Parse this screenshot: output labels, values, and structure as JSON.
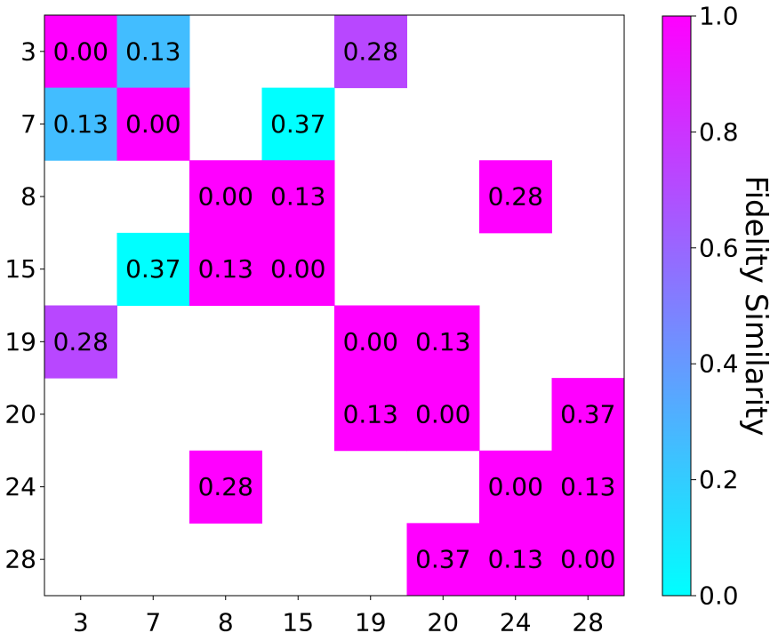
{
  "chart_data": {
    "type": "heatmap",
    "title": "",
    "xlabel": "",
    "ylabel": "",
    "x_categories": [
      "3",
      "7",
      "8",
      "15",
      "19",
      "20",
      "24",
      "28"
    ],
    "y_categories": [
      "3",
      "7",
      "8",
      "15",
      "19",
      "20",
      "24",
      "28"
    ],
    "cells": [
      {
        "row": "3",
        "col": "3",
        "label": "0.00",
        "color_value": 1.0
      },
      {
        "row": "3",
        "col": "7",
        "label": "0.13",
        "color_value": 0.26
      },
      {
        "row": "3",
        "col": "19",
        "label": "0.28",
        "color_value": 0.72
      },
      {
        "row": "7",
        "col": "3",
        "label": "0.13",
        "color_value": 0.26
      },
      {
        "row": "7",
        "col": "7",
        "label": "0.00",
        "color_value": 1.0
      },
      {
        "row": "7",
        "col": "15",
        "label": "0.37",
        "color_value": 0.0
      },
      {
        "row": "8",
        "col": "8",
        "label": "0.00",
        "color_value": 1.0
      },
      {
        "row": "8",
        "col": "15",
        "label": "0.13",
        "color_value": 1.0
      },
      {
        "row": "8",
        "col": "24",
        "label": "0.28",
        "color_value": 1.0
      },
      {
        "row": "15",
        "col": "7",
        "label": "0.37",
        "color_value": 0.0
      },
      {
        "row": "15",
        "col": "8",
        "label": "0.13",
        "color_value": 1.0
      },
      {
        "row": "15",
        "col": "15",
        "label": "0.00",
        "color_value": 1.0
      },
      {
        "row": "19",
        "col": "3",
        "label": "0.28",
        "color_value": 0.72
      },
      {
        "row": "19",
        "col": "19",
        "label": "0.00",
        "color_value": 1.0
      },
      {
        "row": "19",
        "col": "20",
        "label": "0.13",
        "color_value": 1.0
      },
      {
        "row": "20",
        "col": "19",
        "label": "0.13",
        "color_value": 1.0
      },
      {
        "row": "20",
        "col": "20",
        "label": "0.00",
        "color_value": 1.0
      },
      {
        "row": "20",
        "col": "28",
        "label": "0.37",
        "color_value": 1.0
      },
      {
        "row": "24",
        "col": "8",
        "label": "0.28",
        "color_value": 1.0
      },
      {
        "row": "24",
        "col": "24",
        "label": "0.00",
        "color_value": 1.0
      },
      {
        "row": "24",
        "col": "28",
        "label": "0.13",
        "color_value": 1.0
      },
      {
        "row": "28",
        "col": "20",
        "label": "0.37",
        "color_value": 1.0
      },
      {
        "row": "28",
        "col": "24",
        "label": "0.13",
        "color_value": 1.0
      },
      {
        "row": "28",
        "col": "28",
        "label": "0.00",
        "color_value": 1.0
      }
    ],
    "colorbar": {
      "label": "Fidelity Similarity",
      "range": [
        0.0,
        1.0
      ],
      "ticks": [
        "0.0",
        "0.2",
        "0.4",
        "0.6",
        "0.8",
        "1.0"
      ],
      "colormap": "cool",
      "color_low": "#00ffff",
      "color_high": "#ff00ff"
    },
    "grid": false,
    "empty_cell_color": "#ffffff"
  }
}
